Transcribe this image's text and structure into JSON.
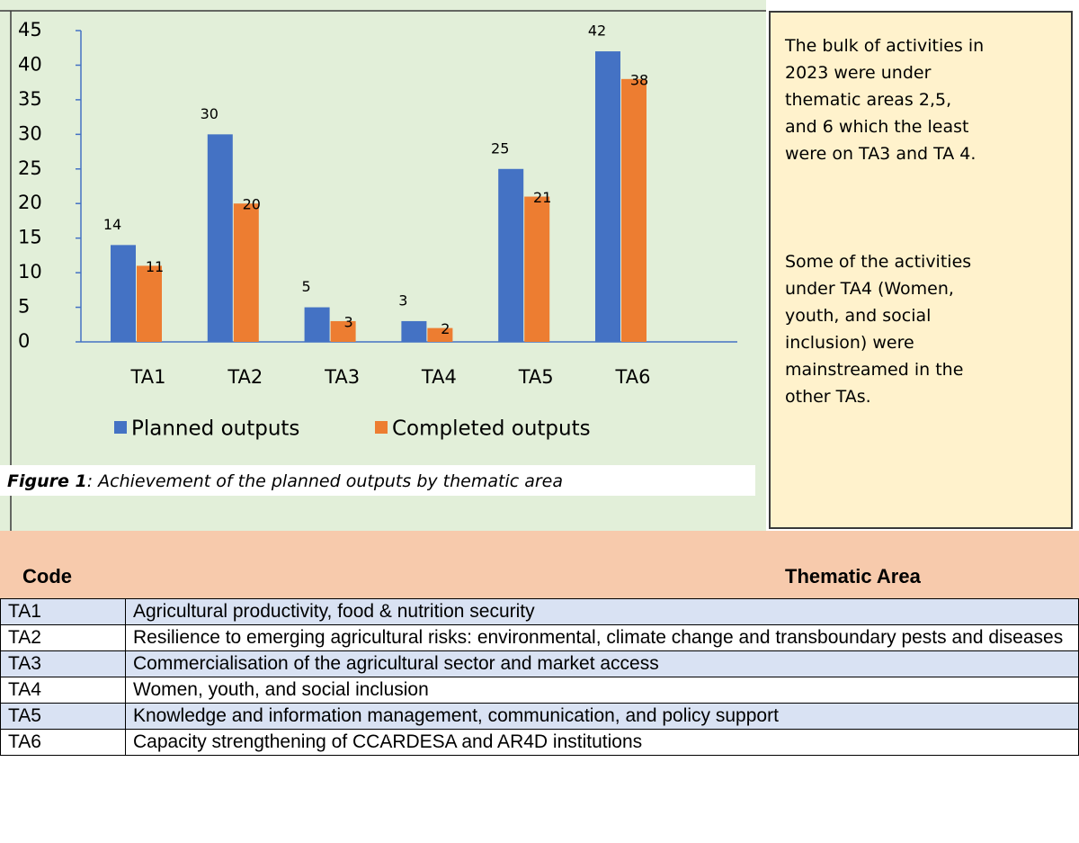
{
  "chart_data": {
    "type": "bar",
    "categories": [
      "TA1",
      "TA2",
      "TA3",
      "TA4",
      "TA5",
      "TA6"
    ],
    "series": [
      {
        "name": "Planned outputs",
        "color": "#4472c4",
        "values": [
          14,
          30,
          5,
          3,
          25,
          42
        ]
      },
      {
        "name": "Completed outputs",
        "color": "#ed7d31",
        "values": [
          11,
          20,
          3,
          2,
          21,
          38
        ]
      }
    ],
    "ylim": [
      0,
      45
    ],
    "yticks": [
      0,
      5,
      10,
      15,
      20,
      25,
      30,
      35,
      40,
      45
    ]
  },
  "caption": {
    "label": "Figure 1",
    "text": ": Achievement of the planned outputs by thematic area"
  },
  "note": {
    "paragraphs": [
      [
        "The bulk of activities in",
        "2023 were under",
        "thematic areas 2,5,",
        "and 6 which the least",
        "were on TA3 and TA 4."
      ],
      [
        "Some of the activities",
        "under TA4 (Women,",
        "youth, and social",
        "inclusion) were",
        "mainstreamed in the",
        "other TAs."
      ]
    ]
  },
  "table": {
    "header": [
      "Code",
      "Thematic Area"
    ],
    "rows": [
      [
        "TA1",
        "Agricultural productivity, food & nutrition security"
      ],
      [
        "TA2",
        "Resilience to emerging agricultural risks: environmental, climate change and transboundary pests and diseases"
      ],
      [
        "TA3",
        "Commercialisation of the agricultural sector and market access"
      ],
      [
        "TA4",
        "Women, youth, and social inclusion"
      ],
      [
        "TA5",
        "Knowledge and information management, communication, and policy support"
      ],
      [
        "TA6",
        "Capacity strengthening of CCARDESA and AR4D institutions"
      ]
    ]
  }
}
